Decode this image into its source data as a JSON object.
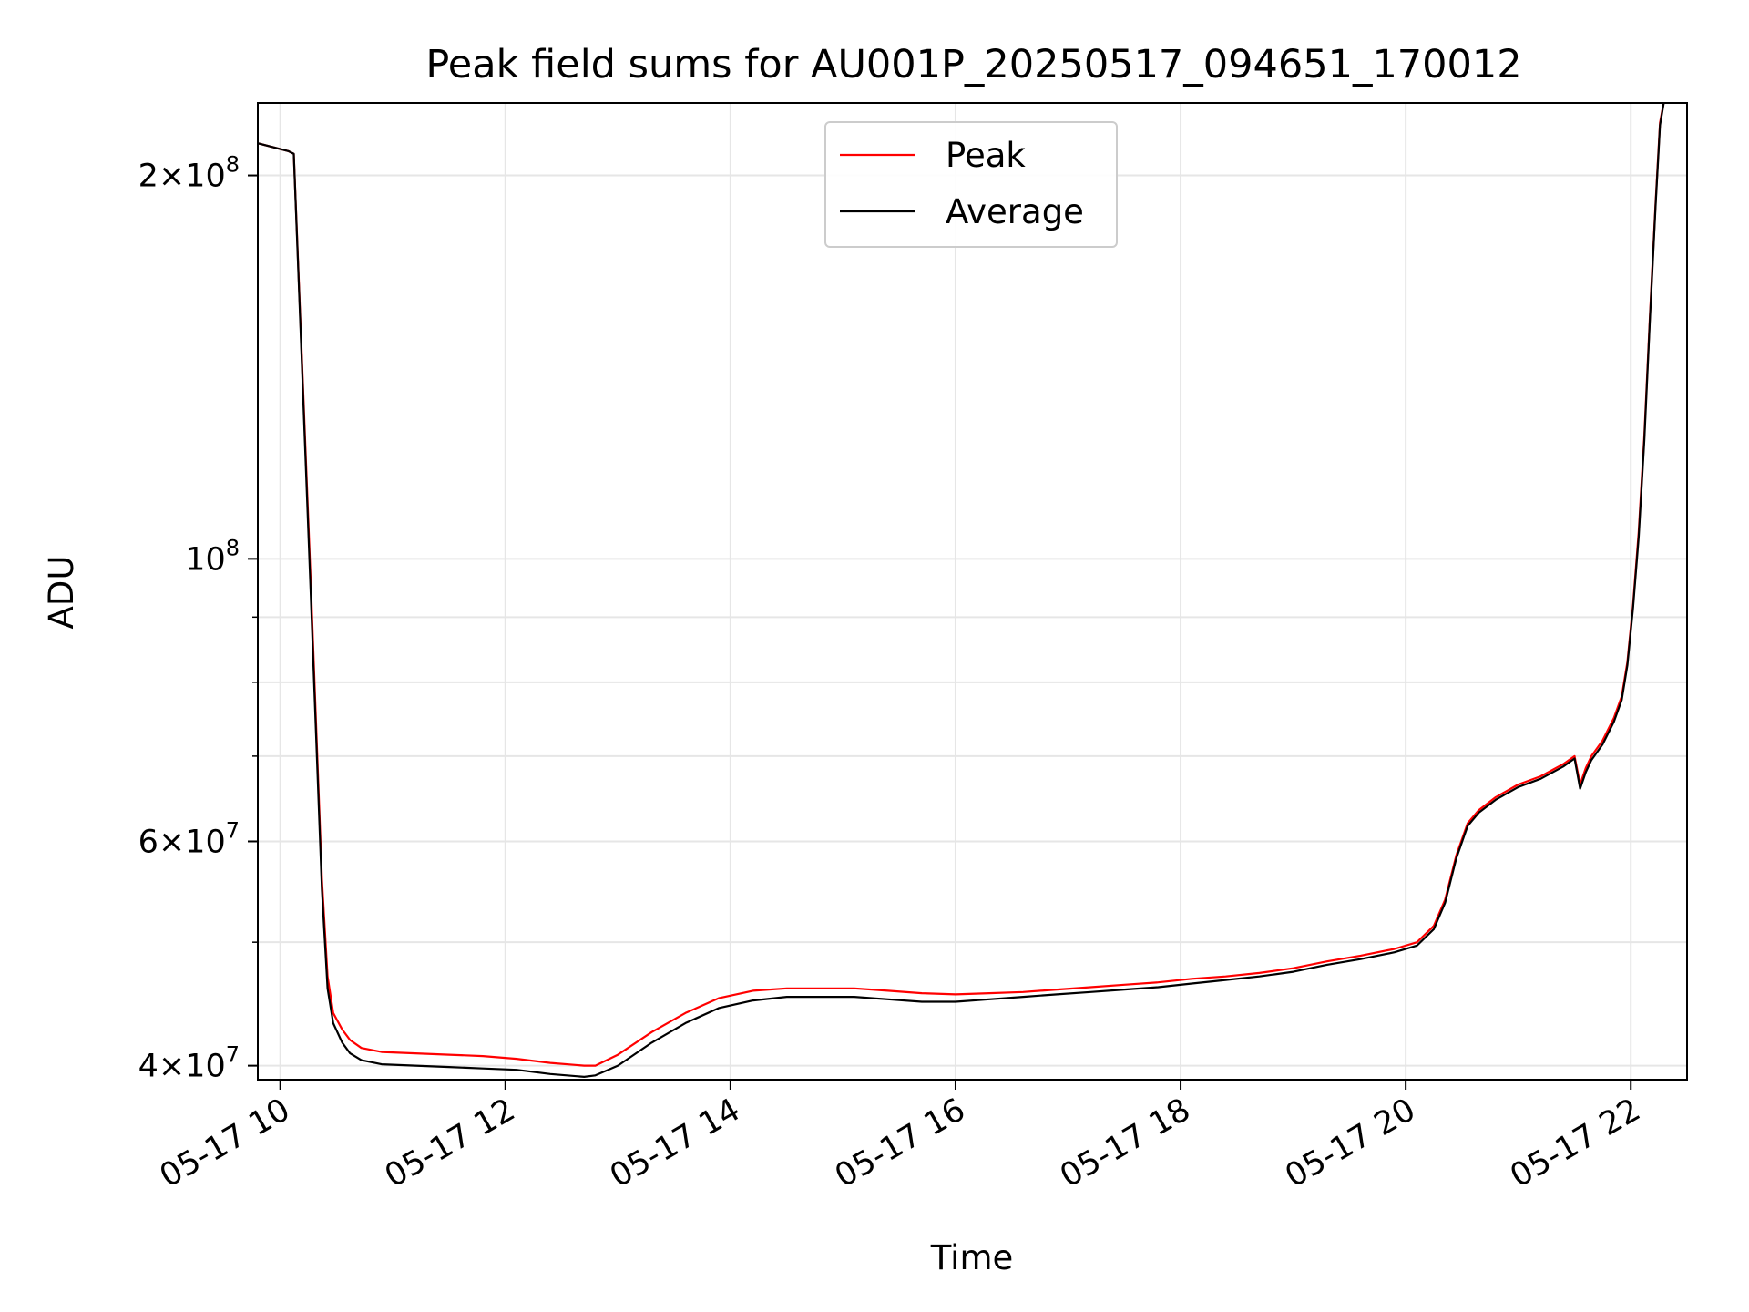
{
  "chart_data": {
    "type": "line",
    "title": "Peak field sums for AU001P_20250517_094651_170012",
    "xlabel": "Time",
    "ylabel": "ADU",
    "yscale": "log",
    "xlim": [
      9.8,
      22.5
    ],
    "ylim": [
      39000000,
      228000000
    ],
    "grid": true,
    "legend_position": "upper-center",
    "x_ticks": [
      {
        "value": 10,
        "label": "05-17 10"
      },
      {
        "value": 12,
        "label": "05-17 12"
      },
      {
        "value": 14,
        "label": "05-17 14"
      },
      {
        "value": 16,
        "label": "05-17 16"
      },
      {
        "value": 18,
        "label": "05-17 18"
      },
      {
        "value": 20,
        "label": "05-17 20"
      },
      {
        "value": 22,
        "label": "05-17 22"
      }
    ],
    "y_major_ticks": [
      {
        "value": 40000000,
        "mantissa": "4",
        "exponent": "7"
      },
      {
        "value": 60000000,
        "mantissa": "6",
        "exponent": "7"
      },
      {
        "value": 100000000,
        "mantissa": "",
        "exponent": "8"
      },
      {
        "value": 200000000,
        "mantissa": "2",
        "exponent": "8"
      }
    ],
    "y_minor_ticks": [
      50000000,
      70000000,
      80000000,
      90000000
    ],
    "series": [
      {
        "name": "Peak",
        "color": "#ff0000",
        "x": [
          9.8,
          10.07,
          10.12,
          10.27,
          10.37,
          10.42,
          10.47,
          10.55,
          10.62,
          10.72,
          10.9,
          11.2,
          11.5,
          11.8,
          12.1,
          12.4,
          12.7,
          12.8,
          13.0,
          13.3,
          13.6,
          13.9,
          14.2,
          14.5,
          14.8,
          15.1,
          15.4,
          15.7,
          16.0,
          16.3,
          16.6,
          16.9,
          17.2,
          17.5,
          17.8,
          18.1,
          18.4,
          18.7,
          19.0,
          19.3,
          19.6,
          19.9,
          20.1,
          20.25,
          20.35,
          20.45,
          20.55,
          20.65,
          20.8,
          21.0,
          21.2,
          21.4,
          21.5,
          21.55,
          21.6,
          21.65,
          21.75,
          21.85,
          21.92,
          21.97,
          22.02,
          22.07,
          22.12,
          22.17,
          22.22,
          22.26,
          22.3
        ],
        "y": [
          212000000,
          209000000,
          208000000,
          96000000,
          56000000,
          47000000,
          44000000,
          42700000,
          41900000,
          41300000,
          41000000,
          40900000,
          40800000,
          40700000,
          40500000,
          40200000,
          40000000,
          40000000,
          40800000,
          42500000,
          44000000,
          45200000,
          45800000,
          46000000,
          46000000,
          46000000,
          45800000,
          45600000,
          45500000,
          45600000,
          45700000,
          45900000,
          46100000,
          46300000,
          46500000,
          46800000,
          47000000,
          47300000,
          47700000,
          48300000,
          48800000,
          49400000,
          50000000,
          51500000,
          54000000,
          58500000,
          62000000,
          63500000,
          65000000,
          66500000,
          67500000,
          69000000,
          70000000,
          66500000,
          68500000,
          70000000,
          72000000,
          75000000,
          78000000,
          83000000,
          92000000,
          105000000,
          125000000,
          155000000,
          190000000,
          220000000,
          230000000
        ]
      },
      {
        "name": "Average",
        "color": "#000000",
        "x": [
          9.8,
          10.07,
          10.12,
          10.27,
          10.37,
          10.42,
          10.47,
          10.55,
          10.62,
          10.72,
          10.9,
          11.2,
          11.5,
          11.8,
          12.1,
          12.4,
          12.7,
          12.8,
          13.0,
          13.3,
          13.6,
          13.9,
          14.2,
          14.5,
          14.8,
          15.1,
          15.4,
          15.7,
          16.0,
          16.3,
          16.6,
          16.9,
          17.2,
          17.5,
          17.8,
          18.1,
          18.4,
          18.7,
          19.0,
          19.3,
          19.6,
          19.9,
          20.1,
          20.25,
          20.35,
          20.45,
          20.55,
          20.65,
          20.8,
          21.0,
          21.2,
          21.4,
          21.5,
          21.55,
          21.6,
          21.65,
          21.75,
          21.85,
          21.92,
          21.97,
          22.02,
          22.07,
          22.12,
          22.17,
          22.22,
          22.26,
          22.3
        ],
        "y": [
          212000000,
          209000000,
          208000000,
          94000000,
          55000000,
          46000000,
          43200000,
          41700000,
          40900000,
          40400000,
          40100000,
          40000000,
          39900000,
          39800000,
          39700000,
          39400000,
          39200000,
          39300000,
          40000000,
          41700000,
          43200000,
          44400000,
          45000000,
          45300000,
          45300000,
          45300000,
          45100000,
          44900000,
          44900000,
          45100000,
          45300000,
          45500000,
          45700000,
          45900000,
          46100000,
          46400000,
          46700000,
          47000000,
          47400000,
          48000000,
          48500000,
          49100000,
          49700000,
          51200000,
          53700000,
          58200000,
          61700000,
          63200000,
          64700000,
          66200000,
          67200000,
          68700000,
          69700000,
          66000000,
          68000000,
          69500000,
          71500000,
          74500000,
          77500000,
          82500000,
          91500000,
          104000000,
          124000000,
          154000000,
          189000000,
          219000000,
          230000000
        ]
      }
    ]
  }
}
